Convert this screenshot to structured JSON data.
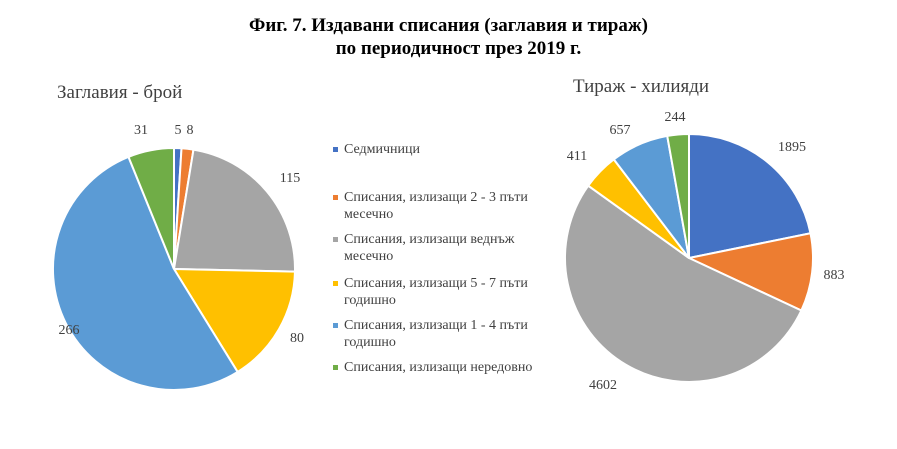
{
  "figure_title": {
    "line1": "Фиг. 7. Издавани списания (заглавия и тираж)",
    "line2": "по периодичност през 2019 г."
  },
  "legend": [
    {
      "label": "Седмичници",
      "color": "#4472C4"
    },
    {
      "label": "Списания, излизащи 2 - 3 пъти месечно",
      "color": "#ED7D31"
    },
    {
      "label": "Списания, излизащи веднъж месечно",
      "color": "#A5A5A5"
    },
    {
      "label": "Списания, излизащи 5 - 7 пъти годишно",
      "color": "#FFC000"
    },
    {
      "label": "Списания, излизащи 1 - 4 пъти годишно",
      "color": "#5B9BD5"
    },
    {
      "label": "Списания, излизащи нередовно",
      "color": "#70AD47"
    }
  ],
  "chart_data": [
    {
      "type": "pie",
      "title": "Заглавия - брой",
      "categories": [
        "Седмичници",
        "Списания, излизащи 2 - 3 пъти месечно",
        "Списания, излизащи веднъж месечно",
        "Списания, излизащи 5 - 7 пъти годишно",
        "Списания, излизащи 1 - 4 пъти годишно",
        "Списания, излизащи нередовно"
      ],
      "values": [
        5,
        8,
        115,
        80,
        266,
        31
      ],
      "colors": [
        "#4472C4",
        "#ED7D31",
        "#A5A5A5",
        "#FFC000",
        "#5B9BD5",
        "#70AD47"
      ],
      "start_angle": "12 o'clock, clockwise"
    },
    {
      "type": "pie",
      "title": "Тираж - хилияди",
      "categories": [
        "Седмичници",
        "Списания, излизащи 2 - 3 пъти месечно",
        "Списания, излизащи веднъж месечно",
        "Списания, излизащи 5 - 7 пъти годишно",
        "Списания, излизащи 1 - 4 пъти годишно",
        "Списания, излизащи нередовно"
      ],
      "values": [
        1895,
        883,
        4602,
        411,
        657,
        244
      ],
      "colors": [
        "#4472C4",
        "#ED7D31",
        "#A5A5A5",
        "#FFC000",
        "#5B9BD5",
        "#70AD47"
      ],
      "start_angle": "12 o'clock, clockwise"
    }
  ]
}
